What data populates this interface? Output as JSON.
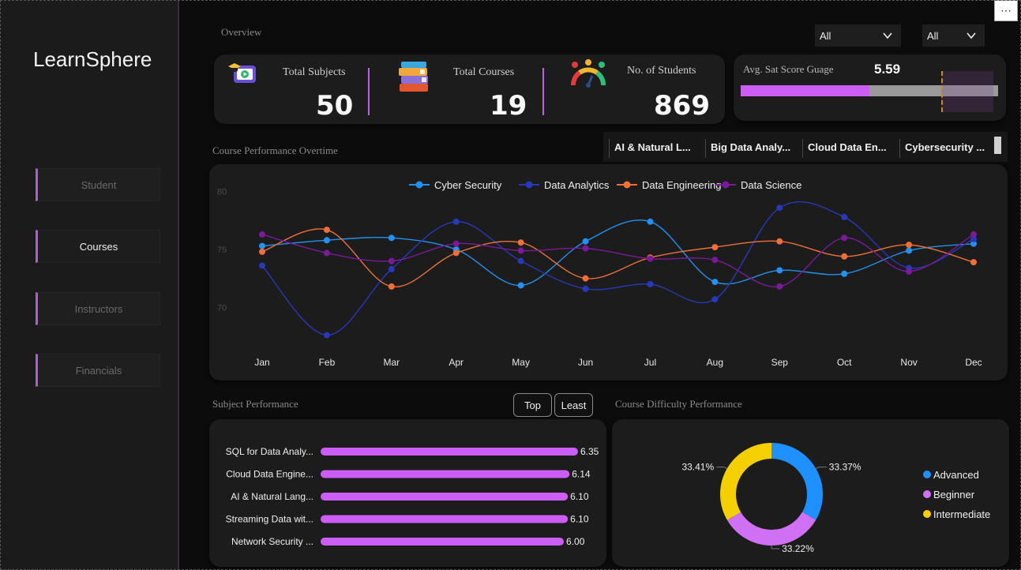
{
  "app": {
    "brand": "LearnSphere"
  },
  "nav": [
    {
      "label": "Student",
      "active": false
    },
    {
      "label": "Courses",
      "active": true
    },
    {
      "label": "Instructors",
      "active": false
    },
    {
      "label": "Financials",
      "active": false
    }
  ],
  "filters": {
    "filter1": "All",
    "filter2": "All"
  },
  "overview": {
    "title": "Overview",
    "kpis": [
      {
        "label": "Total Subjects",
        "value": "50",
        "icon": "video-lesson-icon"
      },
      {
        "label": "Total Courses",
        "value": "19",
        "icon": "books-stack-icon"
      },
      {
        "label": "No. of Students",
        "value": "869",
        "icon": "satisfaction-meter-icon"
      }
    ]
  },
  "gauge": {
    "label": "Avg.  Sat Score Guage",
    "value": "5.59",
    "fill_fraction": 0.5,
    "target_fraction": 0.78,
    "colors": {
      "fill": "#cc5ef5",
      "track": "#9a9a9a",
      "target": "#c98a1e"
    }
  },
  "course_tabs": [
    "AI & Natural L...",
    "Big Data Analy...",
    "Cloud Data En...",
    "Cybersecurity ..."
  ],
  "line_chart_title": "Course Performance Overtime",
  "subject_chart_title": "Subject Performance",
  "subject_toggle": {
    "top": "Top",
    "least": "Least"
  },
  "donut_title": "Course Difficulty Performance",
  "chart_data": [
    {
      "type": "line",
      "x": [
        "Jan",
        "Feb",
        "Mar",
        "Apr",
        "May",
        "Jun",
        "Jul",
        "Aug",
        "Sep",
        "Oct",
        "Nov",
        "Dec"
      ],
      "ylim": [
        66,
        81
      ],
      "yticks": [
        70,
        75,
        80
      ],
      "series": [
        {
          "name": "Cyber Security",
          "color": "#2490f0",
          "values": [
            75.3,
            75.8,
            76.0,
            75.0,
            71.9,
            75.7,
            77.4,
            72.2,
            73.2,
            72.9,
            74.9,
            75.5
          ]
        },
        {
          "name": "Data Analytics",
          "color": "#2738b8",
          "values": [
            73.6,
            67.6,
            73.3,
            77.4,
            74.0,
            71.6,
            72.0,
            70.7,
            78.6,
            77.8,
            73.4,
            75.9
          ]
        },
        {
          "name": "Data Engineering",
          "color": "#ee6f3a",
          "values": [
            74.8,
            76.7,
            71.8,
            74.7,
            75.6,
            72.5,
            74.3,
            75.2,
            75.7,
            74.4,
            75.4,
            73.9
          ]
        },
        {
          "name": "Data Science",
          "color": "#7a1a9a",
          "values": [
            76.3,
            74.7,
            74.0,
            75.5,
            74.9,
            75.1,
            74.2,
            74.1,
            71.8,
            76.0,
            73.1,
            76.3
          ]
        }
      ]
    },
    {
      "type": "bar",
      "orientation": "horizontal",
      "categories": [
        "SQL for Data Analy...",
        "Cloud Data Engine...",
        "AI & Natural Lang...",
        "Streaming Data wit...",
        "Network Security ..."
      ],
      "values": [
        6.35,
        6.14,
        6.1,
        6.1,
        6.0
      ],
      "labels": [
        "6.35",
        "6.14",
        "6.10",
        "6.10",
        "6.00"
      ],
      "color": "#cc5ef5"
    },
    {
      "type": "pie",
      "donut": true,
      "categories": [
        "Advanced",
        "Beginner",
        "Intermediate"
      ],
      "values": [
        33.37,
        33.22,
        33.41
      ],
      "labels": [
        "33.37%",
        "33.22%",
        "33.41%"
      ],
      "colors": [
        "#1e90ff",
        "#d070f5",
        "#f5d000"
      ]
    }
  ]
}
